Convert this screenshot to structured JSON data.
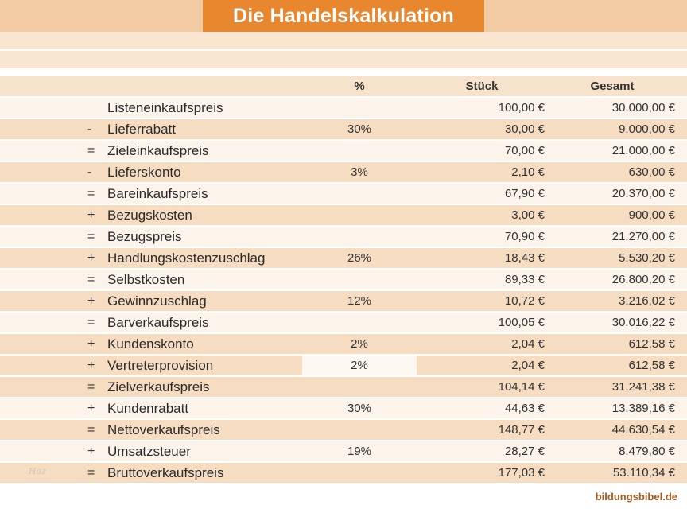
{
  "title": "Die Handelskalkulation",
  "table": {
    "headers": {
      "percent": "%",
      "stueck": "Stück",
      "gesamt": "Gesamt"
    },
    "rows": [
      {
        "op": "",
        "label": "Listeneinkaufspreis",
        "percent": "",
        "stueck": "100,00 €",
        "gesamt": "30.000,00 €",
        "tone": "light",
        "hl": false
      },
      {
        "op": "-",
        "label": "Lieferrabatt",
        "percent": "30%",
        "stueck": "30,00 €",
        "gesamt": "9.000,00 €",
        "tone": "peach",
        "hl": false
      },
      {
        "op": "=",
        "label": "Zieleinkaufspreis",
        "percent": "",
        "stueck": "70,00 €",
        "gesamt": "21.000,00 €",
        "tone": "light",
        "hl": false
      },
      {
        "op": "-",
        "label": "Lieferskonto",
        "percent": "3%",
        "stueck": "2,10 €",
        "gesamt": "630,00 €",
        "tone": "peach",
        "hl": false
      },
      {
        "op": "=",
        "label": "Bareinkaufspreis",
        "percent": "",
        "stueck": "67,90 €",
        "gesamt": "20.370,00 €",
        "tone": "light",
        "hl": false
      },
      {
        "op": "+",
        "label": "Bezugskosten",
        "percent": "",
        "stueck": "3,00 €",
        "gesamt": "900,00 €",
        "tone": "peach",
        "hl": false
      },
      {
        "op": "=",
        "label": "Bezugspreis",
        "percent": "",
        "stueck": "70,90 €",
        "gesamt": "21.270,00 €",
        "tone": "light",
        "hl": false
      },
      {
        "op": "+",
        "label": "Handlungskostenzuschlag",
        "percent": "26%",
        "stueck": "18,43 €",
        "gesamt": "5.530,20 €",
        "tone": "peach",
        "hl": false
      },
      {
        "op": "=",
        "label": "Selbstkosten",
        "percent": "",
        "stueck": "89,33 €",
        "gesamt": "26.800,20 €",
        "tone": "light",
        "hl": false
      },
      {
        "op": "+",
        "label": "Gewinnzuschlag",
        "percent": "12%",
        "stueck": "10,72 €",
        "gesamt": "3.216,02 €",
        "tone": "peach",
        "hl": false
      },
      {
        "op": "=",
        "label": "Barverkaufspreis",
        "percent": "",
        "stueck": "100,05 €",
        "gesamt": "30.016,22 €",
        "tone": "light",
        "hl": false
      },
      {
        "op": "+",
        "label": "Kundenskonto",
        "percent": "2%",
        "stueck": "2,04 €",
        "gesamt": "612,58 €",
        "tone": "peach",
        "hl": false
      },
      {
        "op": "+",
        "label": "Vertreterprovision",
        "percent": "2%",
        "stueck": "2,04 €",
        "gesamt": "612,58 €",
        "tone": "peach",
        "hl": true
      },
      {
        "op": "=",
        "label": "Zielverkaufspreis",
        "percent": "",
        "stueck": "104,14 €",
        "gesamt": "31.241,38 €",
        "tone": "peach",
        "hl": false
      },
      {
        "op": "+",
        "label": "Kundenrabatt",
        "percent": "30%",
        "stueck": "44,63 €",
        "gesamt": "13.389,16 €",
        "tone": "light",
        "hl": false
      },
      {
        "op": "=",
        "label": "Nettoverkaufspreis",
        "percent": "",
        "stueck": "148,77 €",
        "gesamt": "44.630,54 €",
        "tone": "peach",
        "hl": false
      },
      {
        "op": "+",
        "label": "Umsatzsteuer",
        "percent": "19%",
        "stueck": "28,27 €",
        "gesamt": "8.479,80 €",
        "tone": "light",
        "hl": false
      },
      {
        "op": "=",
        "label": "Bruttoverkaufspreis",
        "percent": "",
        "stueck": "177,03 €",
        "gesamt": "53.110,34 €",
        "tone": "peach",
        "hl": false
      }
    ]
  },
  "footer": {
    "brand": "bildungsbibel.de"
  },
  "watermark": "Haz",
  "colors": {
    "accent_orange": "#E8872E",
    "band_tan": "#F2CBA4",
    "empty_band": "#FAE6D0",
    "header_row": "#F7E2CB",
    "row_peach": "#F6DCC1",
    "row_light": "#FCF3EA",
    "text": "#333333",
    "brand_text": "#A55A1E"
  }
}
